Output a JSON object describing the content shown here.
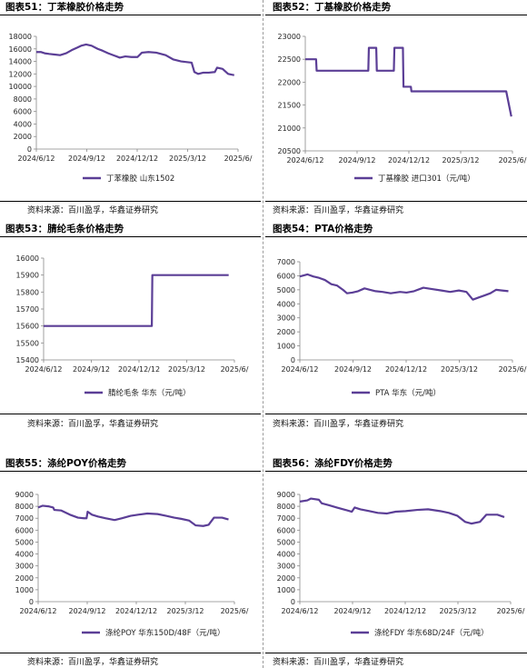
{
  "footer_source": "资料来源：百川盈孚，华鑫证券研究",
  "charts": [
    {
      "figure_title": "图表51：丁苯橡胶价格走势",
      "chart_data": {
        "type": "line",
        "x_ticks": [
          "2024/6/12",
          "2024/9/12",
          "2024/12/12",
          "2025/3/12",
          "2025/6/"
        ],
        "y_ticks": [
          0,
          2000,
          4000,
          6000,
          8000,
          10000,
          12000,
          14000,
          16000,
          18000
        ],
        "ylim": [
          0,
          18000
        ],
        "xlim": [
          "2024-06-12",
          "2025-06-12"
        ],
        "color": "#5B3E96",
        "series": [
          {
            "name": "丁苯橡胶 山东1502",
            "points": [
              [
                "2024-06-12",
                15500
              ],
              [
                "2024-06-20",
                15500
              ],
              [
                "2024-06-27",
                15300
              ],
              [
                "2024-07-05",
                15200
              ],
              [
                "2024-07-15",
                15100
              ],
              [
                "2024-07-25",
                15000
              ],
              [
                "2024-08-05",
                15300
              ],
              [
                "2024-08-15",
                15800
              ],
              [
                "2024-08-25",
                16200
              ],
              [
                "2024-09-01",
                16500
              ],
              [
                "2024-09-10",
                16700
              ],
              [
                "2024-09-20",
                16500
              ],
              [
                "2024-10-01",
                16000
              ],
              [
                "2024-10-10",
                15700
              ],
              [
                "2024-10-20",
                15300
              ],
              [
                "2024-11-01",
                14900
              ],
              [
                "2024-11-10",
                14600
              ],
              [
                "2024-11-20",
                14800
              ],
              [
                "2024-12-01",
                14700
              ],
              [
                "2024-12-12",
                14700
              ],
              [
                "2024-12-20",
                15400
              ],
              [
                "2025-01-01",
                15500
              ],
              [
                "2025-01-15",
                15400
              ],
              [
                "2025-02-01",
                15000
              ],
              [
                "2025-02-15",
                14300
              ],
              [
                "2025-03-01",
                14000
              ],
              [
                "2025-03-20",
                13800
              ],
              [
                "2025-03-25",
                12300
              ],
              [
                "2025-04-01",
                12000
              ],
              [
                "2025-04-10",
                12200
              ],
              [
                "2025-04-20",
                12200
              ],
              [
                "2025-05-01",
                12300
              ],
              [
                "2025-05-05",
                13000
              ],
              [
                "2025-05-15",
                12800
              ],
              [
                "2025-05-25",
                12000
              ],
              [
                "2025-06-05",
                11800
              ]
            ]
          }
        ]
      }
    },
    {
      "figure_title": "图表52：丁基橡胶价格走势",
      "chart_data": {
        "type": "line",
        "x_ticks": [
          "2024/6/12",
          "2024/9/12",
          "2024/12/12",
          "2025/3/12",
          "2025/6/"
        ],
        "y_ticks": [
          20500,
          21000,
          21500,
          22000,
          22500,
          23000
        ],
        "ylim": [
          20500,
          23000
        ],
        "xlim": [
          "2024-06-12",
          "2025-06-12"
        ],
        "color": "#5B3E96",
        "series": [
          {
            "name": "丁基橡胶 进口301（元/吨）",
            "points": [
              [
                "2024-06-12",
                22500
              ],
              [
                "2024-07-01",
                22500
              ],
              [
                "2024-07-02",
                22250
              ],
              [
                "2024-10-01",
                22250
              ],
              [
                "2024-10-02",
                22750
              ],
              [
                "2024-10-15",
                22750
              ],
              [
                "2024-10-16",
                22250
              ],
              [
                "2024-11-15",
                22250
              ],
              [
                "2024-11-16",
                22750
              ],
              [
                "2024-12-01",
                22750
              ],
              [
                "2024-12-02",
                21900
              ],
              [
                "2024-12-15",
                21900
              ],
              [
                "2024-12-16",
                21800
              ],
              [
                "2025-06-01",
                21800
              ],
              [
                "2025-06-10",
                21250
              ]
            ]
          }
        ]
      }
    },
    {
      "figure_title": "图表53：腈纶毛条价格走势",
      "chart_data": {
        "type": "line",
        "x_ticks": [
          "2024/6/12",
          "2024/9/12",
          "2024/12/12",
          "2025/3/12",
          "2025/6/"
        ],
        "y_ticks": [
          15400,
          15500,
          15600,
          15700,
          15800,
          15900,
          16000
        ],
        "ylim": [
          15400,
          16000
        ],
        "xlim": [
          "2024-06-12",
          "2025-06-12"
        ],
        "color": "#5B3E96",
        "series": [
          {
            "name": "腈纶毛条 华东（元/吨）",
            "points": [
              [
                "2024-06-12",
                15600
              ],
              [
                "2025-01-05",
                15600
              ],
              [
                "2025-01-06",
                15900
              ],
              [
                "2025-06-01",
                15900
              ]
            ]
          }
        ]
      }
    },
    {
      "figure_title": "图表54：PTA价格走势",
      "chart_data": {
        "type": "line",
        "x_ticks": [
          "2024/6/12",
          "2024/9/12",
          "2024/12/12",
          "2025/3/12",
          "2025/6/"
        ],
        "y_ticks": [
          0,
          1000,
          2000,
          3000,
          4000,
          5000,
          6000,
          7000
        ],
        "ylim": [
          0,
          7000
        ],
        "xlim": [
          "2024-06-12",
          "2025-06-12"
        ],
        "color": "#5B3E96",
        "series": [
          {
            "name": "PTA 华东（元/吨）",
            "points": [
              [
                "2024-06-12",
                5950
              ],
              [
                "2024-06-25",
                6100
              ],
              [
                "2024-07-05",
                5950
              ],
              [
                "2024-07-15",
                5850
              ],
              [
                "2024-07-25",
                5700
              ],
              [
                "2024-08-05",
                5400
              ],
              [
                "2024-08-15",
                5300
              ],
              [
                "2024-08-25",
                5000
              ],
              [
                "2024-09-01",
                4750
              ],
              [
                "2024-09-10",
                4800
              ],
              [
                "2024-09-20",
                4900
              ],
              [
                "2024-10-01",
                5100
              ],
              [
                "2024-10-10",
                5000
              ],
              [
                "2024-10-20",
                4900
              ],
              [
                "2024-11-01",
                4850
              ],
              [
                "2024-11-15",
                4750
              ],
              [
                "2024-12-01",
                4850
              ],
              [
                "2024-12-12",
                4800
              ],
              [
                "2024-12-25",
                4900
              ],
              [
                "2025-01-10",
                5150
              ],
              [
                "2025-01-25",
                5050
              ],
              [
                "2025-02-10",
                4950
              ],
              [
                "2025-02-25",
                4850
              ],
              [
                "2025-03-12",
                4950
              ],
              [
                "2025-03-25",
                4850
              ],
              [
                "2025-04-05",
                4300
              ],
              [
                "2025-04-15",
                4450
              ],
              [
                "2025-04-25",
                4600
              ],
              [
                "2025-05-05",
                4750
              ],
              [
                "2025-05-15",
                5000
              ],
              [
                "2025-05-25",
                4950
              ],
              [
                "2025-06-05",
                4900
              ]
            ]
          }
        ]
      }
    },
    {
      "figure_title": "图表55：涤纶POY价格走势",
      "chart_data": {
        "type": "line",
        "x_ticks": [
          "2024/6/12",
          "2024/9/12",
          "2024/12/12",
          "2025/3/12",
          "2025/6/"
        ],
        "y_ticks": [
          0,
          1000,
          2000,
          3000,
          4000,
          5000,
          6000,
          7000,
          8000,
          9000
        ],
        "ylim": [
          0,
          9000
        ],
        "xlim": [
          "2024-06-12",
          "2025-06-12"
        ],
        "color": "#5B3E96",
        "series": [
          {
            "name": "涤纶POY 华东150D/48F（元/吨）",
            "points": [
              [
                "2024-06-12",
                7900
              ],
              [
                "2024-06-20",
                8050
              ],
              [
                "2024-07-01",
                8000
              ],
              [
                "2024-07-10",
                7900
              ],
              [
                "2024-07-12",
                7700
              ],
              [
                "2024-07-25",
                7650
              ],
              [
                "2024-08-10",
                7300
              ],
              [
                "2024-08-25",
                7050
              ],
              [
                "2024-09-05",
                7000
              ],
              [
                "2024-09-10",
                7000
              ],
              [
                "2024-09-12",
                7550
              ],
              [
                "2024-09-20",
                7300
              ],
              [
                "2024-10-01",
                7150
              ],
              [
                "2024-10-15",
                7000
              ],
              [
                "2024-11-01",
                6850
              ],
              [
                "2024-11-15",
                7000
              ],
              [
                "2024-12-01",
                7200
              ],
              [
                "2024-12-15",
                7300
              ],
              [
                "2025-01-01",
                7400
              ],
              [
                "2025-01-20",
                7350
              ],
              [
                "2025-02-05",
                7200
              ],
              [
                "2025-02-20",
                7050
              ],
              [
                "2025-03-05",
                6950
              ],
              [
                "2025-03-20",
                6800
              ],
              [
                "2025-04-01",
                6400
              ],
              [
                "2025-04-15",
                6350
              ],
              [
                "2025-04-25",
                6450
              ],
              [
                "2025-05-05",
                7050
              ],
              [
                "2025-05-20",
                7050
              ],
              [
                "2025-06-01",
                6900
              ]
            ]
          }
        ]
      }
    },
    {
      "figure_title": "图表56：涤纶FDY价格走势",
      "chart_data": {
        "type": "line",
        "x_ticks": [
          "2024/6/12",
          "2024/9/12",
          "2024/12/12",
          "2025/3/12",
          "2025/6/"
        ],
        "y_ticks": [
          0,
          1000,
          2000,
          3000,
          4000,
          5000,
          6000,
          7000,
          8000,
          9000
        ],
        "ylim": [
          0,
          9000
        ],
        "xlim": [
          "2024-06-12",
          "2025-06-12"
        ],
        "color": "#5B3E96",
        "series": [
          {
            "name": "涤纶FDY 华东68D/24F（元/吨）",
            "points": [
              [
                "2024-06-12",
                8400
              ],
              [
                "2024-06-25",
                8500
              ],
              [
                "2024-07-01",
                8650
              ],
              [
                "2024-07-15",
                8550
              ],
              [
                "2024-07-20",
                8250
              ],
              [
                "2024-08-01",
                8100
              ],
              [
                "2024-08-15",
                7900
              ],
              [
                "2024-08-30",
                7700
              ],
              [
                "2024-09-10",
                7550
              ],
              [
                "2024-09-15",
                7900
              ],
              [
                "2024-09-25",
                7750
              ],
              [
                "2024-10-10",
                7600
              ],
              [
                "2024-10-25",
                7450
              ],
              [
                "2024-11-10",
                7400
              ],
              [
                "2024-11-25",
                7550
              ],
              [
                "2024-12-12",
                7600
              ],
              [
                "2025-01-01",
                7700
              ],
              [
                "2025-01-20",
                7750
              ],
              [
                "2025-02-10",
                7600
              ],
              [
                "2025-02-25",
                7450
              ],
              [
                "2025-03-12",
                7200
              ],
              [
                "2025-03-25",
                6700
              ],
              [
                "2025-04-05",
                6550
              ],
              [
                "2025-04-20",
                6700
              ],
              [
                "2025-05-01",
                7300
              ],
              [
                "2025-05-20",
                7300
              ],
              [
                "2025-06-01",
                7100
              ]
            ]
          }
        ]
      }
    }
  ]
}
